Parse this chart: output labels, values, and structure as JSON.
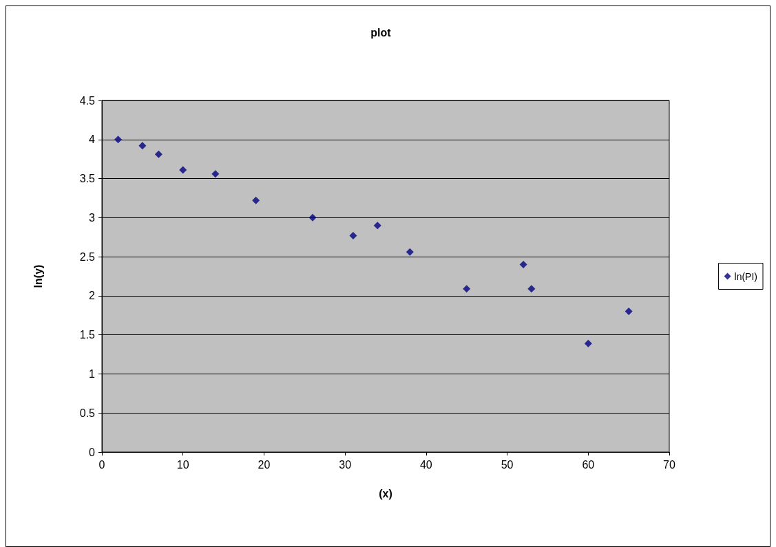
{
  "chart_data": {
    "type": "scatter",
    "title": "plot",
    "xlabel": "(x)",
    "ylabel": "ln(y)",
    "x": [
      2,
      5,
      7,
      10,
      14,
      19,
      26,
      31,
      34,
      38,
      45,
      52,
      53,
      60,
      65
    ],
    "series": [
      {
        "name": "ln(PI)",
        "color": "#000080",
        "values": [
          4.0,
          3.92,
          3.81,
          3.61,
          3.56,
          3.22,
          3.0,
          2.77,
          2.9,
          2.56,
          2.09,
          2.4,
          2.09,
          1.39,
          1.8
        ]
      }
    ],
    "xlim": [
      0,
      70
    ],
    "xticks": [
      0,
      10,
      20,
      30,
      40,
      50,
      60,
      70
    ],
    "ylim": [
      0,
      4.5
    ],
    "yticks": [
      0,
      0.5,
      1,
      1.5,
      2,
      2.5,
      3,
      3.5,
      4,
      4.5
    ],
    "grid": "y",
    "legend": "right",
    "marker": "diamond"
  }
}
